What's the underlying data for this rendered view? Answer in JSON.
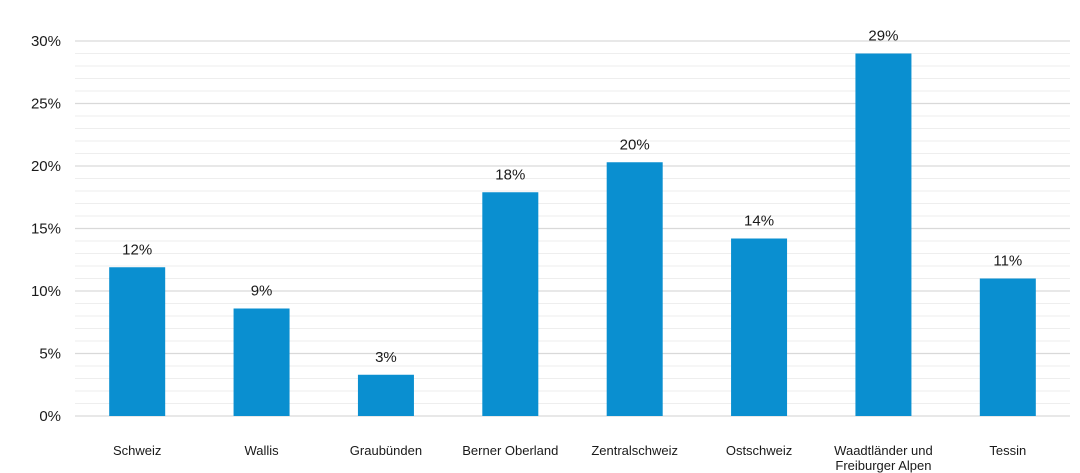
{
  "chart_data": {
    "type": "bar",
    "categories": [
      [
        "Schweiz"
      ],
      [
        "Wallis"
      ],
      [
        "Graubünden"
      ],
      [
        "Berner Oberland"
      ],
      [
        "Zentralschweiz"
      ],
      [
        "Ostschweiz"
      ],
      [
        "Waadtländer und",
        "Freiburger Alpen"
      ],
      [
        "Tessin"
      ]
    ],
    "values": [
      11.9,
      8.6,
      3.3,
      17.9,
      20.3,
      14.2,
      29.0,
      11.0
    ],
    "value_labels": [
      "12%",
      "9%",
      "3%",
      "18%",
      "20%",
      "14%",
      "29%",
      "11%"
    ],
    "ylim": [
      0,
      30
    ],
    "yticks": [
      0,
      5,
      10,
      15,
      20,
      25,
      30
    ],
    "ytick_labels": [
      "0%",
      "5%",
      "10%",
      "15%",
      "20%",
      "25%",
      "30%"
    ],
    "grid": "horizontal major and minor",
    "bar_color": "#0a8fd0",
    "grid_color": "#d9d9d9",
    "minor_grid_color": "#eeeeee",
    "title": "",
    "xlabel": "",
    "ylabel": ""
  }
}
